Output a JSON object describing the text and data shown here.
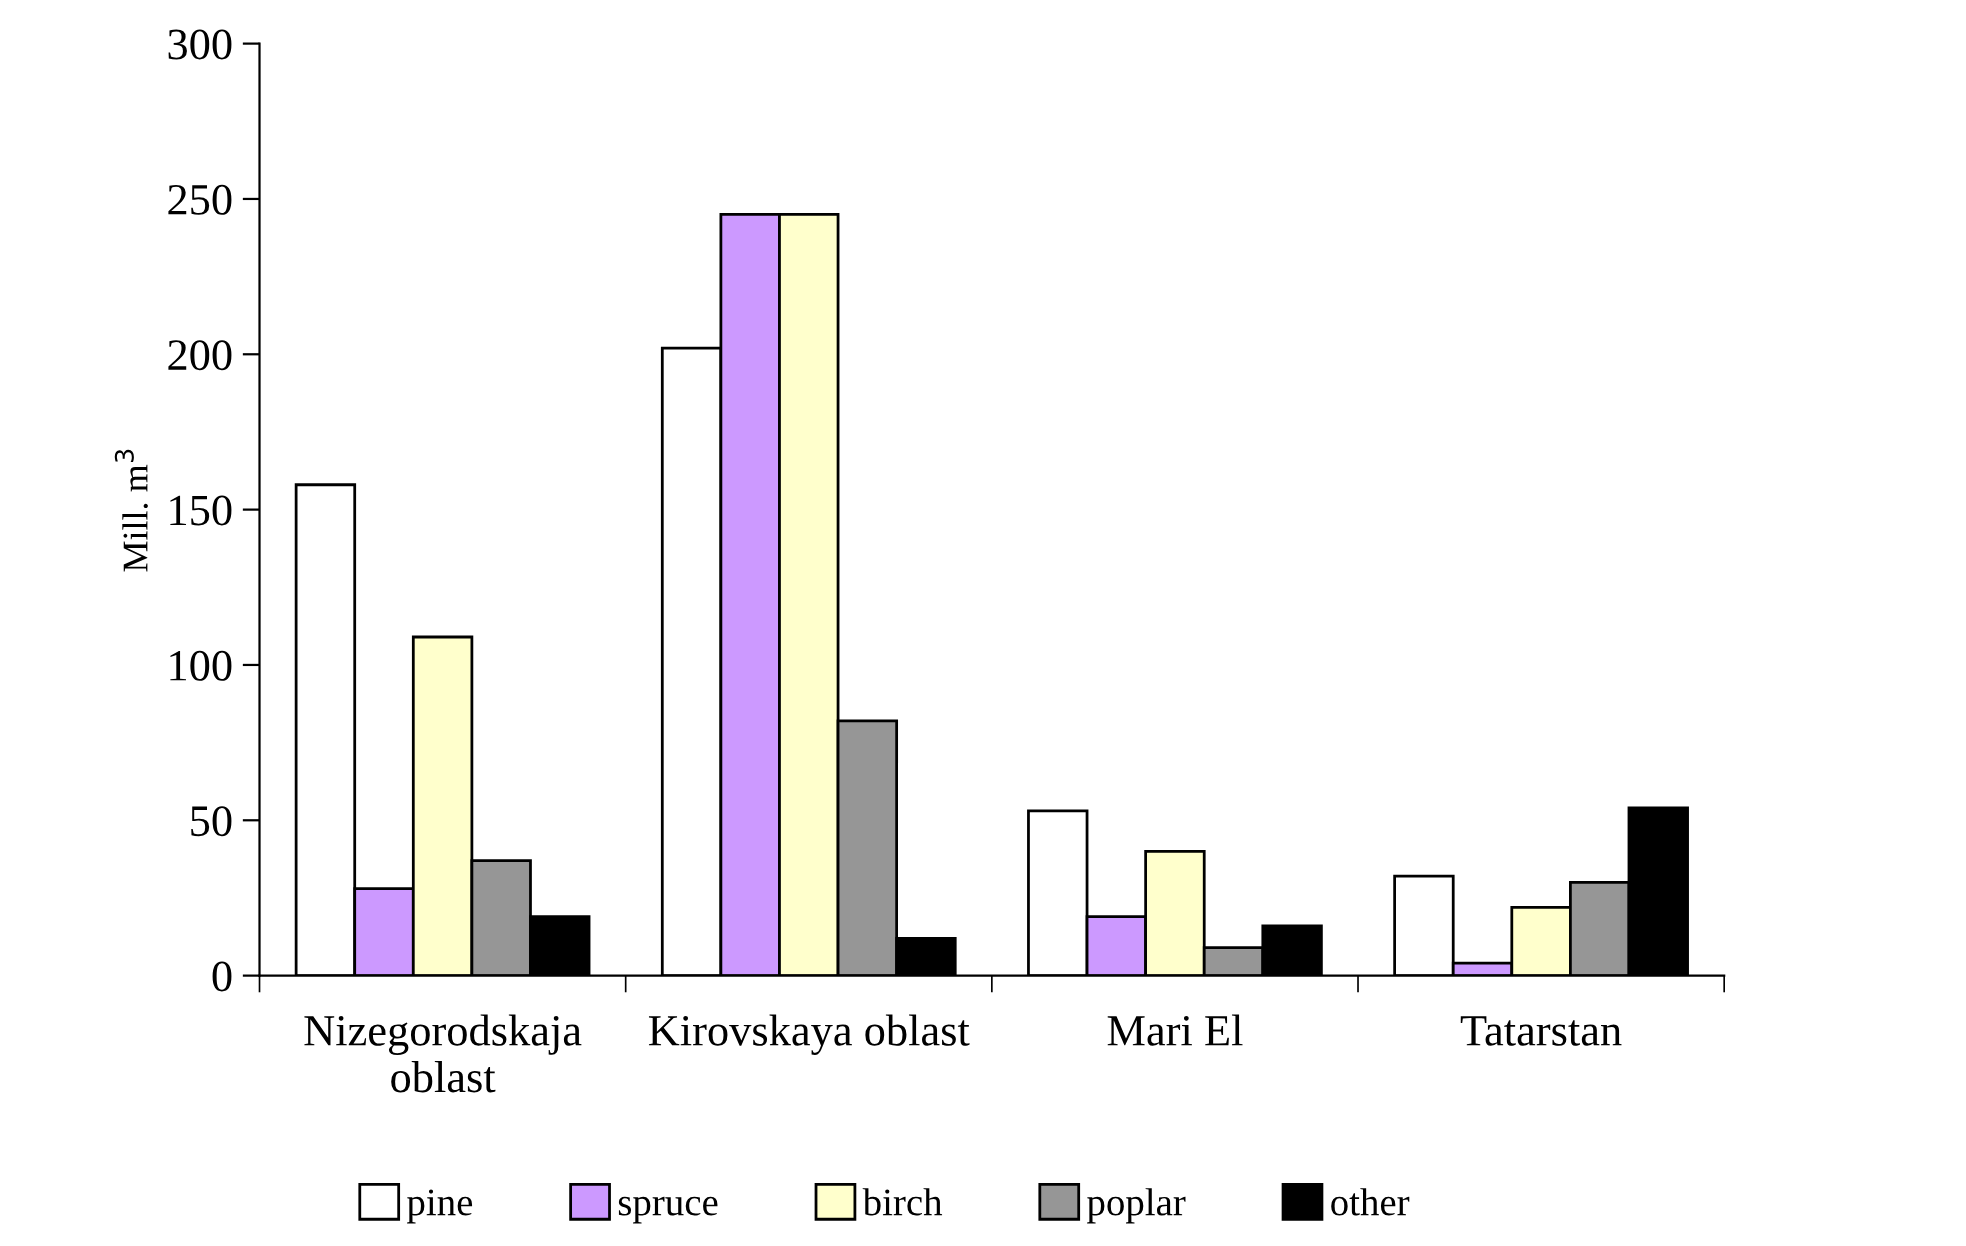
{
  "chart_data": {
    "type": "bar",
    "ylabel": "Mill. m$^{3}$",
    "categories": [
      "Nizegorodskaja\noblast",
      "Kirovskaya oblast",
      "Mari El",
      "Tatarstan"
    ],
    "series": [
      {
        "name": "pine",
        "color": "#ffffff",
        "values": [
          158,
          202,
          53,
          32
        ]
      },
      {
        "name": "spruce",
        "color": "#cc99ff",
        "values": [
          28,
          245,
          19,
          4
        ]
      },
      {
        "name": "birch",
        "color": "#ffffcc",
        "values": [
          109,
          245,
          40,
          22
        ]
      },
      {
        "name": "poplar",
        "color": "#969696",
        "values": [
          37,
          82,
          9,
          30
        ]
      },
      {
        "name": "other",
        "color": "#000000",
        "values": [
          19,
          12,
          16,
          54
        ]
      }
    ],
    "ylim": [
      0,
      300
    ],
    "yticks": [
      0,
      50,
      100,
      150,
      200,
      250,
      300
    ],
    "grid": false,
    "legend": "bottom"
  }
}
